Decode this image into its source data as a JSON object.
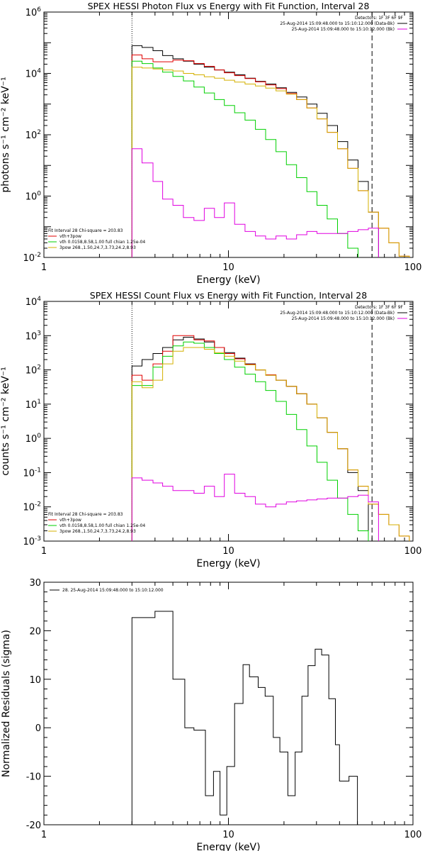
{
  "chart_data": [
    {
      "type": "line",
      "title": "SPEX HESSI Photon Flux vs Energy with Fit Function, Interval 28",
      "xlabel": "Energy (keV)",
      "ylabel": "photons s⁻¹ cm⁻² keV⁻¹",
      "xscale": "log",
      "yscale": "log",
      "xlim": [
        1,
        100
      ],
      "ylim": [
        0.01,
        1000000
      ],
      "xticks": [
        "1",
        "10",
        "100"
      ],
      "yticks": [
        {
          "v": 0.01,
          "label": "10",
          "exp": "-2"
        },
        {
          "v": 1,
          "label": "10",
          "exp": "0"
        },
        {
          "v": 100,
          "label": "10",
          "exp": "2"
        },
        {
          "v": 10000,
          "label": "10",
          "exp": "4"
        },
        {
          "v": 1000000,
          "label": "10",
          "exp": "6"
        }
      ],
      "vlines": [
        {
          "x": 3,
          "style": "dotted"
        },
        {
          "x": 60,
          "style": "dashed"
        }
      ],
      "legend_topright": {
        "title": "Detectors: 1F 3F 6F 9F",
        "entries": [
          {
            "label": "25-Aug-2014 15:09:48.000 to 15:10:12.000 (Data-Bk)",
            "color": "#000000"
          },
          {
            "label": "25-Aug-2014 15:09:48.000 to 15:10:12.000 (Bk)",
            "color": "#e000e0"
          }
        ]
      },
      "legend_bottomleft": {
        "title": "Fit Interval 28   Chi-square = 203.83",
        "entries": [
          {
            "label": "vth+3pow",
            "color": "#e00000"
          },
          {
            "label": "vth 0.0158,8.58,1.00  full chian 1.25e-04",
            "color": "#00d000"
          },
          {
            "label": "3pow 268.,1.50,24.7,3.73,24.2,8.93",
            "color": "#d4b000"
          }
        ]
      },
      "edges": [
        3.0,
        3.4,
        3.9,
        4.4,
        5.0,
        5.7,
        6.5,
        7.4,
        8.4,
        9.5,
        10.8,
        12.3,
        14.0,
        15.9,
        18.1,
        20.6,
        23.4,
        26.6,
        30.2,
        34.3,
        39.0,
        44.3,
        50.4,
        57.3,
        65.1,
        74.0,
        84.1,
        95.6
      ],
      "series": [
        {
          "name": "Data-Bk",
          "color": "#000000",
          "values": [
            80000,
            70000,
            55000,
            38000,
            30000,
            25000,
            20000,
            16000,
            13000,
            11000,
            9000,
            7000,
            5500,
            4500,
            3400,
            2400,
            1700,
            1000,
            500,
            200,
            60,
            15,
            3,
            0.3
          ]
        },
        {
          "name": "vth+3pow",
          "color": "#e00000",
          "values": [
            40000,
            30000,
            24000,
            24000,
            27000,
            26000,
            21000,
            17000,
            13000,
            10500,
            8500,
            6800,
            5300,
            4200,
            3200,
            2200,
            1400,
            750,
            330,
            120,
            35,
            8,
            1.5,
            0.3,
            0.09,
            0.03,
            0.011
          ]
        },
        {
          "name": "vth",
          "color": "#00d000",
          "values": [
            25000,
            21000,
            15000,
            11000,
            8000,
            5700,
            3600,
            2300,
            1400,
            900,
            520,
            300,
            150,
            70,
            28,
            10.5,
            4,
            1.4,
            0.5,
            0.18,
            0.06,
            0.02
          ]
        },
        {
          "name": "3pow",
          "color": "#d4b000",
          "values": [
            16000,
            15000,
            14000,
            13000,
            12000,
            10000,
            9000,
            7800,
            7000,
            6000,
            5200,
            4500,
            3900,
            3300,
            2700,
            2100,
            1400,
            750,
            330,
            120,
            35,
            8,
            1.5,
            0.3,
            0.09,
            0.03,
            0.011
          ]
        },
        {
          "name": "Bk",
          "color": "#e000e0",
          "values": [
            35,
            12,
            3,
            0.8,
            0.5,
            0.2,
            0.16,
            0.4,
            0.2,
            0.6,
            0.12,
            0.07,
            0.05,
            0.04,
            0.05,
            0.04,
            0.055,
            0.07,
            0.06,
            0.06,
            0.06,
            0.07,
            0.08,
            0.09
          ]
        }
      ]
    },
    {
      "type": "line",
      "title": "SPEX HESSI Count Flux vs Energy with Fit Function, Interval 28",
      "xlabel": "Energy (keV)",
      "ylabel": "counts s⁻¹ cm⁻² keV⁻¹",
      "xscale": "log",
      "yscale": "log",
      "xlim": [
        1,
        100
      ],
      "ylim": [
        0.001,
        10000
      ],
      "xticks": [
        "1",
        "10",
        "100"
      ],
      "yticks": [
        {
          "v": 0.001,
          "label": "10",
          "exp": "-3"
        },
        {
          "v": 0.01,
          "label": "10",
          "exp": "-2"
        },
        {
          "v": 0.1,
          "label": "10",
          "exp": "-1"
        },
        {
          "v": 1,
          "label": "10",
          "exp": "0"
        },
        {
          "v": 10,
          "label": "10",
          "exp": "1"
        },
        {
          "v": 100,
          "label": "10",
          "exp": "2"
        },
        {
          "v": 1000,
          "label": "10",
          "exp": "3"
        },
        {
          "v": 10000,
          "label": "10",
          "exp": "4"
        }
      ],
      "vlines": [
        {
          "x": 3,
          "style": "dotted"
        },
        {
          "x": 60,
          "style": "dashed"
        }
      ],
      "legend_topright": {
        "title": "Detectors: 1F 3F 6F 9F",
        "entries": [
          {
            "label": "25-Aug-2014 15:09:48.000 to 15:10:12.000 (Data-Bk)",
            "color": "#000000"
          },
          {
            "label": "25-Aug-2014 15:09:48.000 to 15:10:12.000 (Bk)",
            "color": "#e000e0"
          }
        ]
      },
      "legend_bottomleft": {
        "title": "Fit Interval 28   Chi-square = 203.83",
        "entries": [
          {
            "label": "vth+3pow",
            "color": "#e00000"
          },
          {
            "label": "vth 0.0158,8.58,1.00  full chian 1.25e-04",
            "color": "#00d000"
          },
          {
            "label": "3pow 268.,1.50,24.7,3.73,24.2,8.93",
            "color": "#d4b000"
          }
        ]
      },
      "edges": [
        3.0,
        3.4,
        3.9,
        4.4,
        5.0,
        5.7,
        6.5,
        7.4,
        8.4,
        9.5,
        10.8,
        12.3,
        14.0,
        15.9,
        18.1,
        20.6,
        23.4,
        26.6,
        30.2,
        34.3,
        39.0,
        44.3,
        50.4,
        57.3,
        65.1,
        74.0,
        84.1,
        95.6
      ],
      "series": [
        {
          "name": "Data-Bk",
          "color": "#000000",
          "values": [
            130,
            200,
            300,
            450,
            750,
            900,
            800,
            650,
            450,
            320,
            220,
            150,
            100,
            70,
            50,
            33,
            20,
            10,
            4,
            1.5,
            0.5,
            0.1,
            0.03,
            0.001
          ]
        },
        {
          "name": "vth+3pow",
          "color": "#e00000",
          "values": [
            70,
            50,
            150,
            350,
            1000,
            1000,
            750,
            700,
            450,
            300,
            210,
            145,
            100,
            72,
            50,
            33,
            20,
            10,
            4,
            1.5,
            0.5,
            0.12,
            0.04,
            0.012,
            0.006,
            0.003,
            0.0014
          ]
        },
        {
          "name": "vth",
          "color": "#00d000",
          "values": [
            35,
            35,
            120,
            250,
            500,
            650,
            600,
            450,
            300,
            200,
            120,
            75,
            45,
            25,
            12,
            5,
            1.8,
            0.6,
            0.2,
            0.06,
            0.018,
            0.006,
            0.002
          ]
        },
        {
          "name": "3pow",
          "color": "#d4b000",
          "values": [
            45,
            30,
            50,
            150,
            350,
            450,
            450,
            400,
            320,
            250,
            180,
            140,
            100,
            70,
            50,
            33,
            20,
            10,
            4,
            1.5,
            0.5,
            0.12,
            0.04,
            0.012,
            0.006,
            0.003,
            0.0014
          ]
        },
        {
          "name": "Bk",
          "color": "#e000e0",
          "values": [
            0.07,
            0.06,
            0.05,
            0.04,
            0.03,
            0.03,
            0.025,
            0.04,
            0.02,
            0.09,
            0.025,
            0.02,
            0.012,
            0.01,
            0.012,
            0.014,
            0.015,
            0.016,
            0.017,
            0.018,
            0.018,
            0.02,
            0.022,
            0.014
          ]
        }
      ]
    },
    {
      "type": "line",
      "title": "",
      "xlabel": "Energy (keV)",
      "ylabel": "Normalized Residuals (sigma)",
      "xscale": "log",
      "yscale": "linear",
      "xlim": [
        1,
        100
      ],
      "ylim": [
        -20,
        30
      ],
      "xticks": [
        "1",
        "10",
        "100"
      ],
      "yticks": [
        {
          "v": -20,
          "label": "-20"
        },
        {
          "v": -10,
          "label": "-10"
        },
        {
          "v": 0,
          "label": "0"
        },
        {
          "v": 10,
          "label": "10"
        },
        {
          "v": 20,
          "label": "20"
        },
        {
          "v": 30,
          "label": "30"
        }
      ],
      "legend_topleft": "28. 25-Aug-2014 15:09:48.000 to 15:10:12.000",
      "edges": [
        3.0,
        4.0,
        5.0,
        5.8,
        6.5,
        7.5,
        8.3,
        9.0,
        9.8,
        10.8,
        12.0,
        13.0,
        14.5,
        15.8,
        17.5,
        19.0,
        21.0,
        23.0,
        25.0,
        27.0,
        29.5,
        32.0,
        35.0,
        38.0,
        40.0,
        45.0,
        50.0,
        55.0,
        60.0
      ],
      "series": [
        {
          "name": "28",
          "color": "#000000",
          "values": [
            22.7,
            24.0,
            10.0,
            0.0,
            -0.5,
            -14.0,
            -9.0,
            -18.0,
            -8.0,
            5.0,
            13.0,
            10.5,
            8.3,
            6.5,
            -2.0,
            -5.0,
            -14.0,
            -5.0,
            6.5,
            12.8,
            16.2,
            15.0,
            6.0,
            -3.5,
            -11.0,
            -10.0,
            -20.0
          ]
        }
      ]
    }
  ]
}
